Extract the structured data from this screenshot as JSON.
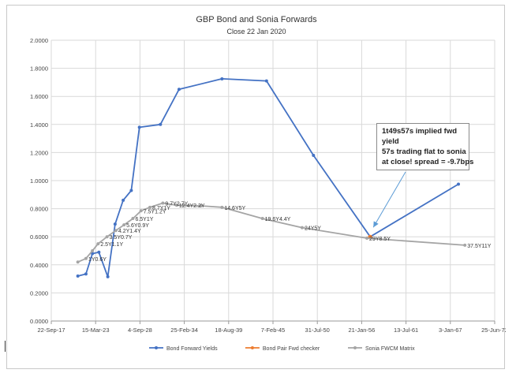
{
  "chart_data": {
    "type": "line",
    "title": "GBP Bond and Sonia Forwards",
    "subtitle": "Close 22 Jan 2020",
    "xlabel": "",
    "ylabel": "",
    "xlim": [
      "22-Sep-17",
      "25-Jun-72"
    ],
    "ylim": [
      0,
      2
    ],
    "x_tick_labels": [
      "22-Sep-17",
      "15-Mar-23",
      "4-Sep-28",
      "25-Feb-34",
      "18-Aug-39",
      "7-Feb-45",
      "31-Jul-50",
      "21-Jan-56",
      "13-Jul-61",
      "3-Jan-67",
      "25-Jun-72"
    ],
    "y_tick_labels": [
      "0.0000",
      "0.2000",
      "0.4000",
      "0.6000",
      "0.8000",
      "1.0000",
      "1.2000",
      "1.4000",
      "1.6000",
      "1.8000",
      "2.0000"
    ],
    "grid": true,
    "legend_position": "bottom",
    "series": [
      {
        "name": "Bond Forward Yields",
        "color": "#4472c4",
        "x": [
          2021.0,
          2022.0,
          2022.8,
          2023.6,
          2024.7,
          2025.6,
          2026.6,
          2027.6,
          2028.6,
          2031.2,
          2033.5,
          2038.8,
          2044.3,
          2050.1,
          2057.1,
          2068.0
        ],
        "y": [
          0.32,
          0.335,
          0.48,
          0.49,
          0.315,
          0.69,
          0.86,
          0.93,
          1.38,
          1.4,
          1.65,
          1.725,
          1.71,
          1.18,
          0.6,
          0.975
        ]
      },
      {
        "name": "Bond Pair Fwd checker",
        "color": "#ed7d31",
        "x": [
          2057.1
        ],
        "y": [
          0.598
        ]
      },
      {
        "name": "Sonia FWCM Matrix",
        "color": "#a5a5a5",
        "x": [
          2021.0,
          2022.0,
          2022.8,
          2023.5,
          2024.6,
          2025.7,
          2026.7,
          2027.8,
          2028.8,
          2029.9,
          2031.5,
          2033.2,
          2036.2,
          2038.8,
          2043.8,
          2048.7,
          2056.7,
          2068.8
        ],
        "y": [
          0.42,
          0.445,
          0.5,
          0.55,
          0.6,
          0.645,
          0.685,
          0.73,
          0.785,
          0.81,
          0.84,
          0.825,
          0.82,
          0.81,
          0.73,
          0.665,
          0.59,
          0.54
        ]
      }
    ],
    "data_labels": [
      {
        "text": "1Y0.6Y",
        "x": 2022.0,
        "y": 0.445
      },
      {
        "text": "2.5Y1.1Y",
        "x": 2023.5,
        "y": 0.55
      },
      {
        "text": "3.5Y0.7Y",
        "x": 2024.6,
        "y": 0.6
      },
      {
        "text": "4.2Y1.4Y",
        "x": 2025.7,
        "y": 0.645
      },
      {
        "text": "5.6Y0.9Y",
        "x": 2026.7,
        "y": 0.685
      },
      {
        "text": "6.5Y1Y",
        "x": 2027.8,
        "y": 0.73
      },
      {
        "text": "7.5Y1.2Y",
        "x": 2028.8,
        "y": 0.785
      },
      {
        "text": "8.7Y1Y",
        "x": 2029.9,
        "y": 0.81
      },
      {
        "text": "9.7Y2.7Y",
        "x": 2031.5,
        "y": 0.84
      },
      {
        "text": "12.4Y2.2Y",
        "x": 2033.2,
        "y": 0.825
      },
      {
        "text": "14.6Y5Y",
        "x": 2038.8,
        "y": 0.81
      },
      {
        "text": "19.6Y4.4Y",
        "x": 2043.8,
        "y": 0.73
      },
      {
        "text": "24Y5Y",
        "x": 2048.7,
        "y": 0.665
      },
      {
        "text": "29Y8.5Y",
        "x": 2056.7,
        "y": 0.59
      },
      {
        "text": "37.5Y11Y",
        "x": 2068.8,
        "y": 0.54
      }
    ],
    "annotation": {
      "lines": [
        "1t49s57s implied fwd",
        "yield",
        "57s trading flat to sonia",
        "at close! spread = -9.7bps"
      ],
      "arrow_to": {
        "x": 2057.1,
        "y": 0.6
      }
    }
  }
}
